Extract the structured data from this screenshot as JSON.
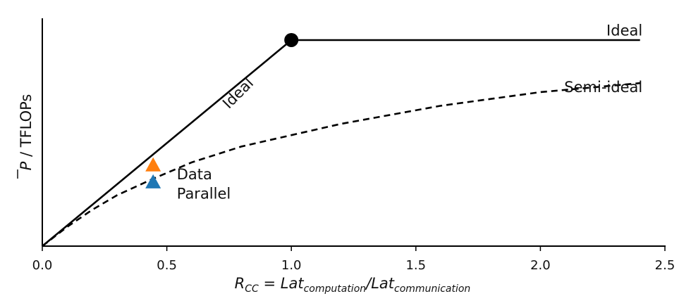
{
  "chart_data": {
    "type": "line",
    "xlabel": {
      "R": "R",
      "cc": "CC",
      "eq": " = ",
      "lat1": "Lat",
      "sub1": "computation",
      "slash": "/",
      "lat2": "Lat",
      "sub2": "communication"
    },
    "ylabel": {
      "p": "P",
      "rest": " / TFLOPs"
    },
    "xlim": [
      0,
      2.5
    ],
    "ylim": [
      0,
      1.0
    ],
    "x_ticks": [
      "0.0",
      "0.5",
      "1.0",
      "1.5",
      "2.0",
      "2.5"
    ],
    "y_ticks": [],
    "grid": false,
    "series": [
      {
        "name": "Ideal",
        "style": "solid",
        "color": "#000000",
        "x": [
          0.0,
          1.0,
          2.4
        ],
        "y": [
          0.0,
          0.91,
          0.91
        ]
      },
      {
        "name": "Semi-ideal",
        "style": "dashed",
        "color": "#000000",
        "x": [
          0.0,
          0.1,
          0.2,
          0.3,
          0.45,
          0.6,
          0.8,
          1.0,
          1.2,
          1.4,
          1.6,
          1.8,
          2.0,
          2.2,
          2.4
        ],
        "y": [
          0.0,
          0.085,
          0.16,
          0.225,
          0.3,
          0.37,
          0.44,
          0.49,
          0.54,
          0.58,
          0.62,
          0.65,
          0.68,
          0.7,
          0.72
        ]
      }
    ],
    "markers": [
      {
        "shape": "circle",
        "color": "#000000",
        "x": 1.0,
        "y": 0.91
      },
      {
        "shape": "triangle",
        "color": "#ff7f0e",
        "x": 0.445,
        "y": 0.355
      },
      {
        "shape": "triangle",
        "color": "#1f77b4",
        "x": 0.445,
        "y": 0.28
      }
    ],
    "annotations": [
      {
        "text": "Ideal",
        "x": 0.8,
        "y": 0.66,
        "rotation": -45
      },
      {
        "text": "Ideal",
        "x": 2.41,
        "y": 0.93,
        "anchor": "end"
      },
      {
        "text": "Semi-ideal",
        "x": 2.41,
        "y": 0.68,
        "anchor": "end"
      },
      {
        "text": "Data",
        "x": 0.54,
        "y": 0.295,
        "anchor": "start"
      },
      {
        "text": "Parallel",
        "x": 0.54,
        "y": 0.21,
        "anchor": "start"
      }
    ]
  }
}
